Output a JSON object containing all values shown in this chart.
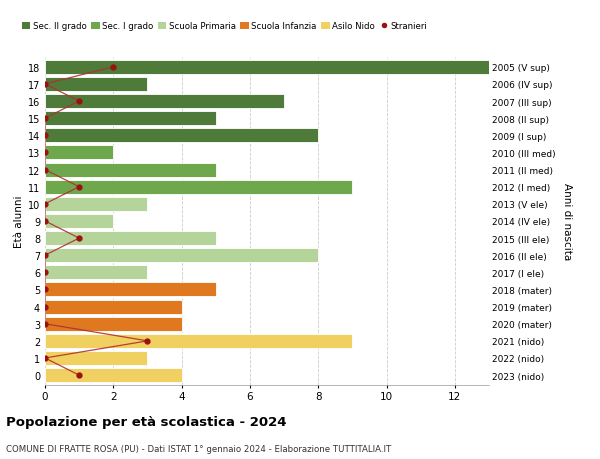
{
  "ages": [
    18,
    17,
    16,
    15,
    14,
    13,
    12,
    11,
    10,
    9,
    8,
    7,
    6,
    5,
    4,
    3,
    2,
    1,
    0
  ],
  "right_labels": [
    "2005 (V sup)",
    "2006 (IV sup)",
    "2007 (III sup)",
    "2008 (II sup)",
    "2009 (I sup)",
    "2010 (III med)",
    "2011 (II med)",
    "2012 (I med)",
    "2013 (V ele)",
    "2014 (IV ele)",
    "2015 (III ele)",
    "2016 (II ele)",
    "2017 (I ele)",
    "2018 (mater)",
    "2019 (mater)",
    "2020 (mater)",
    "2021 (nido)",
    "2022 (nido)",
    "2023 (nido)"
  ],
  "bar_values": [
    13,
    3,
    7,
    5,
    8,
    2,
    5,
    9,
    3,
    2,
    5,
    8,
    3,
    5,
    4,
    4,
    9,
    3,
    4
  ],
  "stranieri": [
    2,
    0,
    1,
    0,
    0,
    0,
    0,
    1,
    0,
    0,
    1,
    0,
    0,
    0,
    0,
    0,
    3,
    0,
    1
  ],
  "bar_colors": [
    "#4e7a3a",
    "#4e7a3a",
    "#4e7a3a",
    "#4e7a3a",
    "#4e7a3a",
    "#6fa84c",
    "#6fa84c",
    "#6fa84c",
    "#b5d49a",
    "#b5d49a",
    "#b5d49a",
    "#b5d49a",
    "#b5d49a",
    "#e07820",
    "#e07820",
    "#e07820",
    "#f0d060",
    "#f0d060",
    "#f0d060"
  ],
  "legend_colors": [
    "#4e7a3a",
    "#6fa84c",
    "#b5d49a",
    "#e07820",
    "#f0d060"
  ],
  "legend_labels": [
    "Sec. II grado",
    "Sec. I grado",
    "Scuola Primaria",
    "Scuola Infanzia",
    "Asilo Nido",
    "Stranieri"
  ],
  "ylabel_left": "Età alunni",
  "ylabel_right": "Anni di nascita",
  "title": "Popolazione per età scolastica - 2024",
  "subtitle": "COMUNE DI FRATTE ROSA (PU) - Dati ISTAT 1° gennaio 2024 - Elaborazione TUTTITALIA.IT",
  "xlim": [
    0,
    13
  ],
  "stranieri_color": "#9b1010",
  "stranieri_line_color": "#b03030",
  "bar_height": 0.82,
  "grid_color": "#cccccc",
  "bg_color": "#ffffff"
}
